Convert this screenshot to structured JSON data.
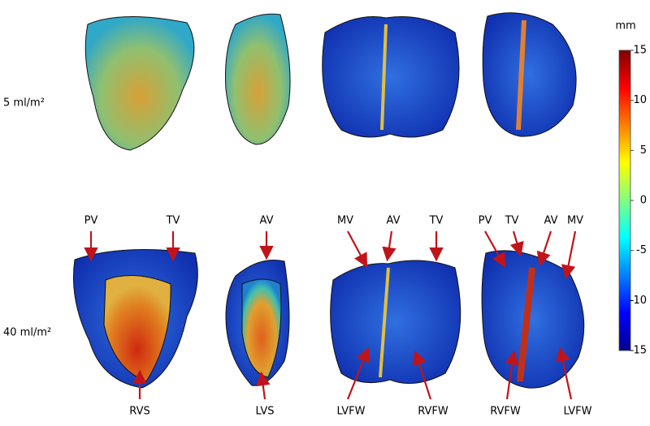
{
  "rows": [
    "5 ml/m²",
    "40 ml/m²"
  ],
  "annotations": {
    "top": [
      "PV",
      "TV",
      "AV",
      "MV",
      "AV",
      "TV",
      "PV",
      "TV",
      "AV",
      "MV"
    ],
    "bottom": [
      "RVS",
      "LVS",
      "LVFW",
      "RVFW",
      "RVFW",
      "LVFW"
    ]
  },
  "colorbar": {
    "unit": "mm",
    "range": [
      -15,
      15
    ],
    "ticks": [
      15,
      10,
      5,
      0,
      -5,
      -10,
      -15
    ]
  }
}
